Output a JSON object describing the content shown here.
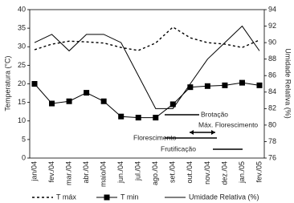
{
  "chart_data": {
    "type": "line",
    "y_label": "Temperatura (°C)",
    "y2_label": "Umidade Relativa (%)",
    "categories": [
      "jan/04",
      "fev./04",
      "mar./04",
      "abr./04",
      "maio/04",
      "jun./04",
      "jul./04",
      "ago./04",
      "set./04",
      "out./04",
      "nov./04",
      "dez./04",
      "jan./05",
      "fev./05"
    ],
    "series": [
      {
        "name": "T máx",
        "color": "#000000",
        "line_style": "dashed",
        "marker": "none",
        "values": [
          29.2,
          30.7,
          31.5,
          31.3,
          31,
          29.8,
          29,
          31,
          35.3,
          32.4,
          31.1,
          30.7,
          29.8,
          31.8
        ]
      },
      {
        "name": "T min",
        "color": "#000000",
        "line_style": "solid",
        "marker": "square",
        "values": [
          20,
          14.7,
          15.3,
          17.6,
          15.3,
          11.2,
          10.9,
          10.9,
          14.5,
          19.1,
          19.4,
          19.6,
          20.3,
          19.6
        ]
      },
      {
        "name": "Umidade Relativa (%)",
        "color": "#000000",
        "line_style": "solid",
        "marker": "none",
        "axis": "y2",
        "values": [
          90,
          91,
          89,
          91,
          91,
          90,
          86,
          82,
          82,
          85,
          88,
          90,
          92,
          89
        ]
      }
    ],
    "ylim": [
      0,
      40
    ],
    "yticks": [
      0,
      5,
      10,
      15,
      20,
      25,
      30,
      35,
      40
    ],
    "y2lim": [
      76,
      94
    ],
    "y2ticks": [
      76,
      78,
      80,
      82,
      84,
      86,
      88,
      90,
      92,
      94
    ],
    "annotations": [
      "Brotação",
      "Máx. Florescimento",
      "Florescimento",
      "Frutificação"
    ]
  }
}
